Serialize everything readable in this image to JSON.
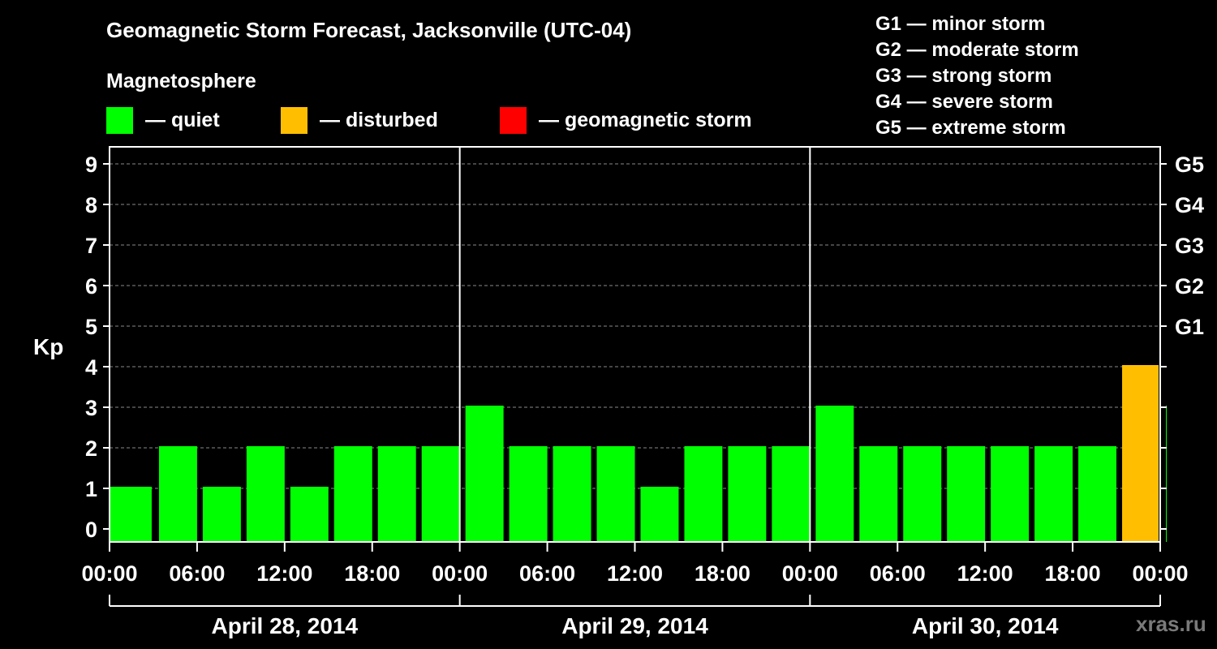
{
  "header": {
    "title": "Geomagnetic Storm Forecast, Jacksonville (UTC-04)",
    "subtitle": "Magnetosphere"
  },
  "legend": [
    {
      "label": "— quiet",
      "color": "#00ff00"
    },
    {
      "label": "— disturbed",
      "color": "#ffbf00"
    },
    {
      "label": "— geomagnetic storm",
      "color": "#ff0000"
    }
  ],
  "g_scale": [
    "G1 — minor storm",
    "G2 — moderate storm",
    "G3 — strong storm",
    "G4 — severe storm",
    "G5 — extreme storm"
  ],
  "watermark": "xras.ru",
  "chart_data": {
    "type": "bar",
    "ylabel": "Kp",
    "ylim": [
      0,
      9
    ],
    "yticks": [
      "0",
      "1",
      "2",
      "3",
      "4",
      "5",
      "6",
      "7",
      "8",
      "9"
    ],
    "right_ticks": [
      {
        "value": 5,
        "label": "G1"
      },
      {
        "value": 6,
        "label": "G2"
      },
      {
        "value": 7,
        "label": "G3"
      },
      {
        "value": 8,
        "label": "G4"
      },
      {
        "value": 9,
        "label": "G5"
      }
    ],
    "grid": "horizontal dashed",
    "xticks": [
      "00:00",
      "06:00",
      "12:00",
      "18:00",
      "00:00",
      "06:00",
      "12:00",
      "18:00",
      "00:00",
      "06:00",
      "12:00",
      "18:00",
      "00:00"
    ],
    "days": [
      "April 28, 2014",
      "April 29, 2014",
      "April 30, 2014"
    ],
    "bar_interval_hours": 3,
    "values": [
      1,
      2,
      1,
      2,
      1,
      2,
      2,
      2,
      3,
      2,
      2,
      2,
      1,
      2,
      2,
      2,
      3,
      2,
      2,
      2,
      2,
      2,
      2,
      4,
      3
    ],
    "colors": {
      "quiet": "#00ff00",
      "disturbed": "#ffbf00",
      "storm": "#ff0000"
    }
  }
}
